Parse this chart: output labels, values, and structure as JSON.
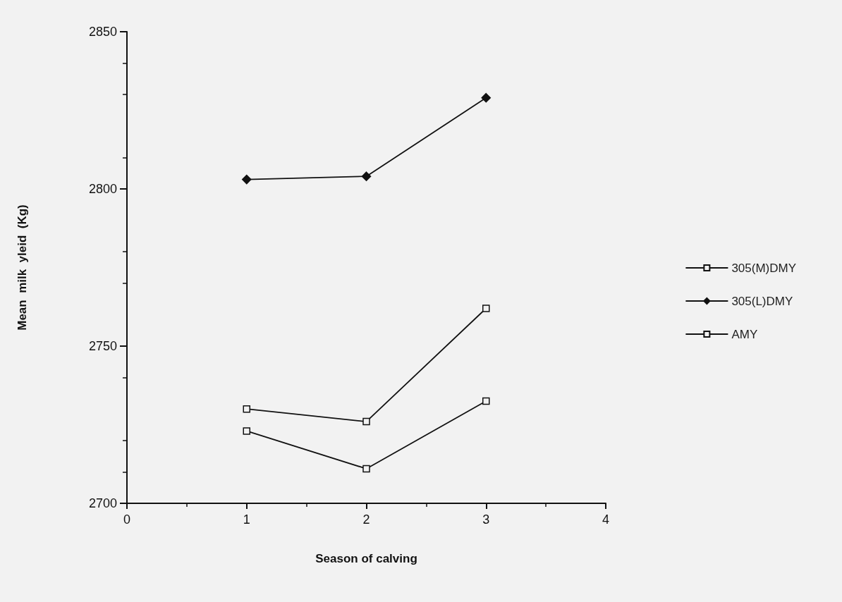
{
  "chart_data": {
    "type": "line",
    "xlabel": "Season of calving",
    "ylabel": "Mean  milk  yleid  (Kg)",
    "x": [
      1,
      2,
      3
    ],
    "xlim": [
      0,
      4
    ],
    "xticks": [
      0,
      1,
      2,
      3,
      4
    ],
    "ylim": [
      2700,
      2850
    ],
    "yticks": [
      2700,
      2750,
      2800,
      2850
    ],
    "grid": false,
    "legend": "right",
    "series": [
      {
        "name": "305(M)DMY",
        "color": "#111111",
        "marker": "square",
        "values": [
          2730,
          2726,
          2762
        ]
      },
      {
        "name": "305(L)DMY",
        "color": "#111111",
        "marker": "diamond",
        "values": [
          2803,
          2804,
          2829
        ]
      },
      {
        "name": "AMY",
        "color": "#111111",
        "marker": "square",
        "values": [
          2723,
          2711,
          2732.5
        ]
      }
    ]
  }
}
